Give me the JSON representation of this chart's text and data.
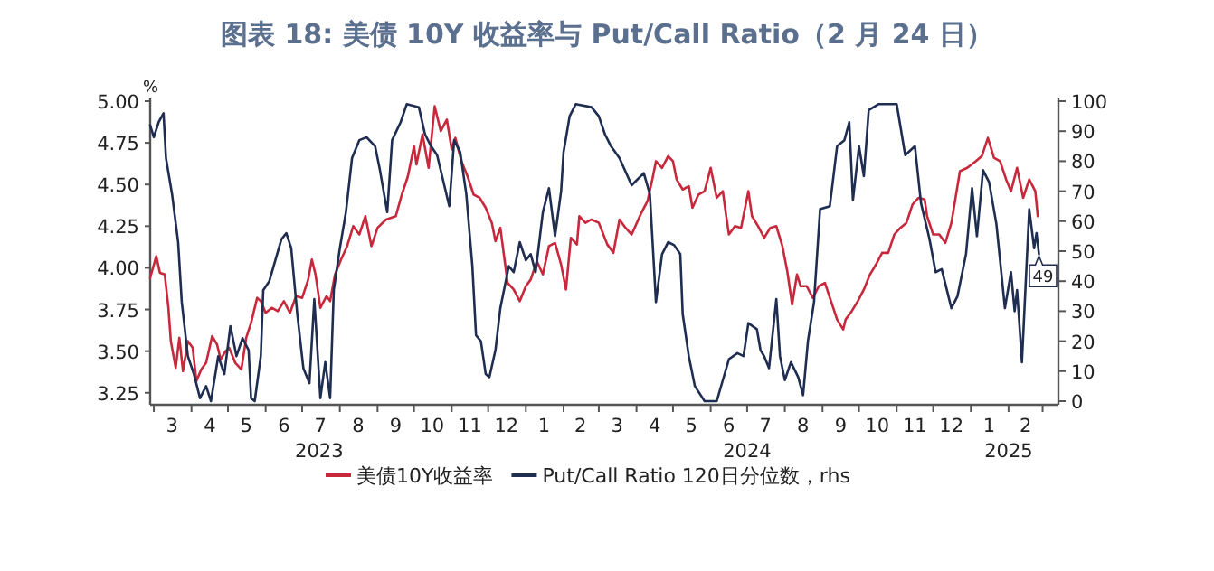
{
  "chart_data": {
    "type": "line",
    "title": "图表 18: 美债 10Y 收益率与 Put/Call Ratio（2 月 24 日）",
    "ylabel": "%",
    "xlim": [
      "2023-02-26",
      "2025-03-14"
    ],
    "xticks": [
      {
        "value": "2023-03-01",
        "label": null
      },
      {
        "value": "2023-03-16",
        "label": "3"
      },
      {
        "value": "2023-04-01",
        "label": null
      },
      {
        "value": "2023-04-16",
        "label": "4"
      },
      {
        "value": "2023-05-01",
        "label": null
      },
      {
        "value": "2023-05-16",
        "label": "5"
      },
      {
        "value": "2023-06-01",
        "label": null
      },
      {
        "value": "2023-06-16",
        "label": "6"
      },
      {
        "value": "2023-07-01",
        "label": null
      },
      {
        "value": "2023-07-16",
        "label": "7"
      },
      {
        "value": "2023-08-01",
        "label": null
      },
      {
        "value": "2023-08-16",
        "label": "8"
      },
      {
        "value": "2023-09-01",
        "label": null
      },
      {
        "value": "2023-09-16",
        "label": "9"
      },
      {
        "value": "2023-10-01",
        "label": null
      },
      {
        "value": "2023-10-16",
        "label": "10"
      },
      {
        "value": "2023-11-01",
        "label": null
      },
      {
        "value": "2023-11-16",
        "label": "11"
      },
      {
        "value": "2023-12-01",
        "label": null
      },
      {
        "value": "2023-12-16",
        "label": "12"
      },
      {
        "value": "2024-01-01",
        "label": null
      },
      {
        "value": "2024-01-16",
        "label": "1"
      },
      {
        "value": "2024-02-01",
        "label": null
      },
      {
        "value": "2024-02-15",
        "label": "2"
      },
      {
        "value": "2024-03-01",
        "label": null
      },
      {
        "value": "2024-03-16",
        "label": "3"
      },
      {
        "value": "2024-04-01",
        "label": null
      },
      {
        "value": "2024-04-16",
        "label": "4"
      },
      {
        "value": "2024-05-01",
        "label": null
      },
      {
        "value": "2024-05-16",
        "label": "5"
      },
      {
        "value": "2024-06-01",
        "label": null
      },
      {
        "value": "2024-06-16",
        "label": "6"
      },
      {
        "value": "2024-07-01",
        "label": null
      },
      {
        "value": "2024-07-16",
        "label": "7"
      },
      {
        "value": "2024-08-01",
        "label": null
      },
      {
        "value": "2024-08-16",
        "label": "8"
      },
      {
        "value": "2024-09-01",
        "label": null
      },
      {
        "value": "2024-09-16",
        "label": "9"
      },
      {
        "value": "2024-10-01",
        "label": null
      },
      {
        "value": "2024-10-16",
        "label": "10"
      },
      {
        "value": "2024-11-01",
        "label": null
      },
      {
        "value": "2024-11-16",
        "label": "11"
      },
      {
        "value": "2024-12-01",
        "label": null
      },
      {
        "value": "2024-12-16",
        "label": "12"
      },
      {
        "value": "2025-01-01",
        "label": null
      },
      {
        "value": "2025-01-16",
        "label": "1"
      },
      {
        "value": "2025-02-01",
        "label": null
      },
      {
        "value": "2025-02-15",
        "label": "2"
      },
      {
        "value": "2025-03-01",
        "label": null
      }
    ],
    "x2lim": [
      "2023-02-26",
      "2025-03-14"
    ],
    "x2ticks": [
      {
        "value": "2023-07-15",
        "label": "2023"
      },
      {
        "value": "2024-07-01",
        "label": "2024"
      },
      {
        "value": "2025-02-01",
        "label": "2025"
      }
    ],
    "ylim": [
      3.2,
      5.0
    ],
    "yticks": [
      {
        "value": 3.25,
        "label": "3.25"
      },
      {
        "value": 3.5,
        "label": "3.50"
      },
      {
        "value": 3.75,
        "label": "3.75"
      },
      {
        "value": 4,
        "label": "4.00"
      },
      {
        "value": 4.25,
        "label": "4.25"
      },
      {
        "value": 4.5,
        "label": "4.50"
      },
      {
        "value": 4.75,
        "label": "4.75"
      },
      {
        "value": 5,
        "label": "5.00"
      }
    ],
    "y2lim": [
      0,
      100
    ],
    "y2ticks": [
      0,
      10,
      20,
      30,
      40,
      50,
      60,
      70,
      80,
      90,
      100
    ],
    "legend": "bottom",
    "series": [
      {
        "name": "美债10Y收益率",
        "color": "#c8283c",
        "x": [
          "2023-02-26",
          "2023-03-03",
          "2023-03-06",
          "2023-03-10",
          "2023-03-13",
          "2023-03-15",
          "2023-03-19",
          "2023-03-22",
          "2023-03-25",
          "2023-03-29",
          "2023-04-02",
          "2023-04-05",
          "2023-04-09",
          "2023-04-13",
          "2023-04-18",
          "2023-04-22",
          "2023-04-25",
          "2023-04-29",
          "2023-05-02",
          "2023-05-07",
          "2023-05-12",
          "2023-05-16",
          "2023-05-20",
          "2023-05-25",
          "2023-05-28",
          "2023-06-01",
          "2023-06-06",
          "2023-06-11",
          "2023-06-16",
          "2023-06-21",
          "2023-06-26",
          "2023-07-01",
          "2023-07-06",
          "2023-07-09",
          "2023-07-12",
          "2023-07-16",
          "2023-07-21",
          "2023-07-24",
          "2023-07-28",
          "2023-08-02",
          "2023-08-07",
          "2023-08-12",
          "2023-08-17",
          "2023-08-22",
          "2023-08-27",
          "2023-09-01",
          "2023-09-08",
          "2023-09-16",
          "2023-09-21",
          "2023-09-26",
          "2023-10-01",
          "2023-10-03",
          "2023-10-08",
          "2023-10-13",
          "2023-10-18",
          "2023-10-23",
          "2023-10-28",
          "2023-11-01",
          "2023-11-04",
          "2023-11-09",
          "2023-11-14",
          "2023-11-19",
          "2023-11-24",
          "2023-11-29",
          "2023-12-04",
          "2023-12-07",
          "2023-12-11",
          "2023-12-17",
          "2023-12-22",
          "2023-12-27",
          "2024-01-01",
          "2024-01-05",
          "2024-01-10",
          "2024-01-15",
          "2024-01-20",
          "2024-01-25",
          "2024-01-30",
          "2024-02-03",
          "2024-02-07",
          "2024-02-12",
          "2024-02-14",
          "2024-02-19",
          "2024-02-24",
          "2024-03-01",
          "2024-03-08",
          "2024-03-13",
          "2024-03-18",
          "2024-03-23",
          "2024-03-28",
          "2024-04-05",
          "2024-04-10",
          "2024-04-14",
          "2024-04-17",
          "2024-04-22",
          "2024-04-27",
          "2024-05-01",
          "2024-05-04",
          "2024-05-09",
          "2024-05-14",
          "2024-05-17",
          "2024-05-22",
          "2024-05-27",
          "2024-06-01",
          "2024-06-06",
          "2024-06-11",
          "2024-06-13",
          "2024-06-16",
          "2024-06-21",
          "2024-06-26",
          "2024-07-02",
          "2024-07-05",
          "2024-07-10",
          "2024-07-15",
          "2024-07-20",
          "2024-07-25",
          "2024-07-30",
          "2024-08-03",
          "2024-08-07",
          "2024-08-11",
          "2024-08-14",
          "2024-08-19",
          "2024-08-24",
          "2024-08-29",
          "2024-09-03",
          "2024-09-08",
          "2024-09-13",
          "2024-09-18",
          "2024-09-20",
          "2024-09-25",
          "2024-09-30",
          "2024-10-05",
          "2024-10-10",
          "2024-10-15",
          "2024-10-20",
          "2024-10-25",
          "2024-10-30",
          "2024-11-04",
          "2024-11-09",
          "2024-11-14",
          "2024-11-19",
          "2024-11-24",
          "2024-11-26",
          "2024-12-01",
          "2024-12-06",
          "2024-12-11",
          "2024-12-16",
          "2024-12-23",
          "2024-12-29",
          "2025-01-05",
          "2025-01-10",
          "2025-01-15",
          "2025-01-20",
          "2025-01-25",
          "2025-01-30",
          "2025-02-03",
          "2025-02-08",
          "2025-02-13",
          "2025-02-18",
          "2025-02-23",
          "2025-02-25"
        ],
        "values": [
          3.94,
          4.07,
          3.97,
          3.96,
          3.76,
          3.56,
          3.4,
          3.58,
          3.38,
          3.56,
          3.52,
          3.32,
          3.39,
          3.43,
          3.59,
          3.54,
          3.45,
          3.5,
          3.52,
          3.43,
          3.39,
          3.58,
          3.67,
          3.82,
          3.8,
          3.73,
          3.76,
          3.74,
          3.8,
          3.73,
          3.83,
          3.82,
          3.93,
          4.05,
          3.96,
          3.76,
          3.83,
          3.8,
          3.96,
          4.05,
          4.13,
          4.25,
          4.2,
          4.31,
          4.13,
          4.24,
          4.29,
          4.31,
          4.44,
          4.55,
          4.73,
          4.62,
          4.8,
          4.6,
          4.97,
          4.82,
          4.89,
          4.71,
          4.78,
          4.64,
          4.55,
          4.44,
          4.42,
          4.36,
          4.27,
          4.16,
          4.24,
          3.91,
          3.87,
          3.8,
          3.89,
          3.93,
          4.04,
          3.96,
          4.13,
          4.15,
          4.02,
          3.87,
          4.18,
          4.14,
          4.31,
          4.27,
          4.29,
          4.27,
          4.14,
          4.09,
          4.29,
          4.24,
          4.2,
          4.33,
          4.4,
          4.53,
          4.64,
          4.6,
          4.67,
          4.64,
          4.53,
          4.47,
          4.49,
          4.36,
          4.44,
          4.46,
          4.6,
          4.42,
          4.46,
          4.35,
          4.2,
          4.25,
          4.24,
          4.46,
          4.31,
          4.25,
          4.18,
          4.24,
          4.25,
          4.13,
          3.98,
          3.78,
          3.96,
          3.89,
          3.89,
          3.82,
          3.89,
          3.91,
          3.8,
          3.69,
          3.63,
          3.69,
          3.74,
          3.8,
          3.87,
          3.96,
          4.02,
          4.09,
          4.09,
          4.2,
          4.24,
          4.27,
          4.38,
          4.42,
          4.41,
          4.31,
          4.2,
          4.2,
          4.15,
          4.27,
          4.58,
          4.6,
          4.64,
          4.67,
          4.78,
          4.66,
          4.64,
          4.53,
          4.46,
          4.6,
          4.42,
          4.53,
          4.46,
          4.31
        ]
      },
      {
        "name": "Put/Call Ratio 120日分位数，rhs",
        "color": "#1f2d50",
        "axis": "y2",
        "x": [
          "2023-02-26",
          "2023-03-01",
          "2023-03-05",
          "2023-03-09",
          "2023-03-11",
          "2023-03-16",
          "2023-03-21",
          "2023-03-24",
          "2023-03-29",
          "2023-04-03",
          "2023-04-08",
          "2023-04-13",
          "2023-04-17",
          "2023-04-23",
          "2023-04-28",
          "2023-05-03",
          "2023-05-08",
          "2023-05-13",
          "2023-05-18",
          "2023-05-20",
          "2023-05-23",
          "2023-05-28",
          "2023-05-30",
          "2023-06-04",
          "2023-06-09",
          "2023-06-14",
          "2023-06-18",
          "2023-06-22",
          "2023-06-27",
          "2023-07-02",
          "2023-07-07",
          "2023-07-11",
          "2023-07-16",
          "2023-07-20",
          "2023-07-24",
          "2023-07-27",
          "2023-08-01",
          "2023-08-06",
          "2023-08-11",
          "2023-08-17",
          "2023-08-23",
          "2023-08-30",
          "2023-09-03",
          "2023-09-09",
          "2023-09-13",
          "2023-09-20",
          "2023-09-25",
          "2023-10-05",
          "2023-10-10",
          "2023-10-15",
          "2023-10-20",
          "2023-10-30",
          "2023-11-03",
          "2023-11-08",
          "2023-11-13",
          "2023-11-18",
          "2023-11-21",
          "2023-11-25",
          "2023-11-29",
          "2023-12-02",
          "2023-12-07",
          "2023-12-11",
          "2023-12-18",
          "2023-12-22",
          "2023-12-27",
          "2024-01-01",
          "2024-01-05",
          "2024-01-09",
          "2024-01-15",
          "2024-01-20",
          "2024-01-25",
          "2024-01-30",
          "2024-02-01",
          "2024-02-06",
          "2024-02-11",
          "2024-02-24",
          "2024-03-01",
          "2024-03-06",
          "2024-03-11",
          "2024-03-18",
          "2024-03-28",
          "2024-04-07",
          "2024-04-12",
          "2024-04-17",
          "2024-04-22",
          "2024-04-27",
          "2024-05-02",
          "2024-05-07",
          "2024-05-09",
          "2024-05-14",
          "2024-05-19",
          "2024-05-27",
          "2024-06-06",
          "2024-06-11",
          "2024-06-16",
          "2024-06-23",
          "2024-06-28",
          "2024-07-02",
          "2024-07-09",
          "2024-07-12",
          "2024-07-15",
          "2024-07-19",
          "2024-07-25",
          "2024-07-28",
          "2024-08-01",
          "2024-08-06",
          "2024-08-12",
          "2024-08-16",
          "2024-08-20",
          "2024-08-25",
          "2024-08-30",
          "2024-09-07",
          "2024-09-13",
          "2024-09-19",
          "2024-09-23",
          "2024-09-26",
          "2024-10-01",
          "2024-10-05",
          "2024-10-09",
          "2024-10-17",
          "2024-11-01",
          "2024-11-08",
          "2024-11-16",
          "2024-11-21",
          "2024-11-28",
          "2024-12-03",
          "2024-12-08",
          "2024-12-16",
          "2024-12-21",
          "2024-12-28",
          "2025-01-02",
          "2025-01-06",
          "2025-01-11",
          "2025-01-16",
          "2025-01-22",
          "2025-01-29",
          "2025-02-03",
          "2025-02-06",
          "2025-02-08",
          "2025-02-12",
          "2025-02-18",
          "2025-02-22",
          "2025-02-24",
          "2025-02-26"
        ],
        "values": [
          92,
          88,
          93,
          96,
          81,
          69,
          53,
          33,
          15,
          9,
          1,
          5,
          0,
          15,
          9,
          25,
          15,
          21,
          17,
          1,
          0,
          15,
          37,
          40,
          47,
          54,
          56,
          51,
          29,
          11,
          6,
          34,
          1,
          13,
          1,
          37,
          51,
          63,
          81,
          87,
          88,
          85,
          77,
          63,
          87,
          93,
          99,
          98,
          89,
          85,
          82,
          65,
          87,
          83,
          69,
          45,
          22,
          20,
          9,
          8,
          17,
          31,
          45,
          43,
          53,
          47,
          49,
          43,
          63,
          71,
          55,
          70,
          83,
          95,
          99,
          98,
          95,
          89,
          85,
          81,
          72,
          76,
          69,
          33,
          49,
          53,
          52,
          49,
          29,
          15,
          5,
          0,
          0,
          7,
          14,
          16,
          15,
          26,
          24,
          17,
          15,
          11,
          34,
          15,
          7,
          13,
          8,
          2,
          20,
          33,
          64,
          65,
          85,
          87,
          93,
          67,
          85,
          75,
          97,
          99,
          99,
          82,
          85,
          66,
          54,
          43,
          44,
          31,
          35,
          49,
          71,
          55,
          77,
          73,
          59,
          31,
          43,
          30,
          37,
          13,
          64,
          51,
          56,
          49
        ],
        "value_labels": [
          null,
          null,
          null,
          null,
          null,
          null,
          null,
          null,
          null,
          null,
          null,
          null,
          null,
          null,
          null,
          null,
          null,
          null,
          null,
          null,
          null,
          null,
          null,
          null,
          null,
          null,
          null,
          null,
          null,
          null,
          null,
          null,
          null,
          null,
          null,
          null,
          null,
          null,
          null,
          null,
          null,
          null,
          null,
          null,
          null,
          null,
          null,
          null,
          null,
          null,
          null,
          null,
          null,
          null,
          null,
          null,
          null,
          null,
          null,
          null,
          null,
          null,
          null,
          null,
          null,
          null,
          null,
          null,
          null,
          null,
          null,
          null,
          null,
          null,
          null,
          null,
          null,
          null,
          null,
          null,
          null,
          null,
          null,
          null,
          null,
          null,
          null,
          null,
          null,
          null,
          null,
          null,
          null,
          null,
          null,
          null,
          null,
          null,
          null,
          null,
          null,
          null,
          null,
          null,
          null,
          null,
          null,
          null,
          null,
          null,
          null,
          null,
          null,
          null,
          null,
          null,
          null,
          null,
          null,
          null,
          null,
          null,
          null,
          null,
          null,
          null,
          null,
          null,
          null,
          null,
          null,
          null,
          null,
          null,
          null,
          null,
          null,
          null,
          null,
          null,
          null,
          null,
          null,
          "49"
        ]
      }
    ]
  }
}
